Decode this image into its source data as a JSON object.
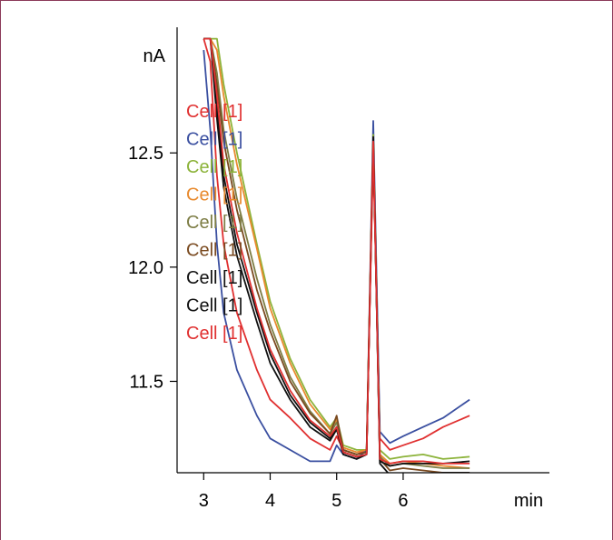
{
  "chart_data": {
    "type": "line",
    "xlabel": "min",
    "ylabel": "nA",
    "xlim": [
      2.6,
      8.2
    ],
    "ylim": [
      11.1,
      13.05
    ],
    "x_ticks": [
      3,
      4,
      5,
      6
    ],
    "x_tick_labels": [
      "3",
      "4",
      "5",
      "6"
    ],
    "y_ticks": [
      11.5,
      12.0,
      12.5
    ],
    "y_tick_labels": [
      "11.5",
      "12.0",
      "12.5"
    ],
    "grid": false,
    "legend_position": "top-left",
    "series": [
      {
        "name": "Cell [1]",
        "color": "#e03030",
        "x": [
          3.0,
          3.1,
          3.2,
          3.3,
          3.5,
          3.8,
          4.0,
          4.3,
          4.6,
          4.9,
          5.0,
          5.1,
          5.3,
          5.45,
          5.55,
          5.65,
          5.8,
          6.0,
          6.3,
          6.6,
          7.0
        ],
        "y": [
          13.0,
          12.9,
          12.4,
          12.1,
          11.8,
          11.55,
          11.42,
          11.34,
          11.25,
          11.2,
          11.26,
          11.2,
          11.18,
          11.2,
          12.5,
          11.25,
          11.2,
          11.22,
          11.25,
          11.3,
          11.35
        ]
      },
      {
        "name": "Cell [1]",
        "color": "#3a4fa0",
        "x": [
          3.0,
          3.1,
          3.2,
          3.3,
          3.5,
          3.8,
          4.0,
          4.3,
          4.6,
          4.9,
          5.0,
          5.1,
          5.3,
          5.45,
          5.55,
          5.65,
          5.8,
          6.0,
          6.3,
          6.6,
          7.0
        ],
        "y": [
          12.95,
          12.6,
          12.1,
          11.8,
          11.55,
          11.35,
          11.25,
          11.2,
          11.15,
          11.15,
          11.22,
          11.18,
          11.16,
          11.2,
          12.64,
          11.28,
          11.23,
          11.26,
          11.3,
          11.34,
          11.42
        ]
      },
      {
        "name": "Cell [1]",
        "color": "#8cb33a",
        "x": [
          3.0,
          3.1,
          3.2,
          3.3,
          3.5,
          3.8,
          4.0,
          4.3,
          4.6,
          4.9,
          5.0,
          5.1,
          5.3,
          5.45,
          5.55,
          5.65,
          5.8,
          6.0,
          6.3,
          6.6,
          7.0
        ],
        "y": [
          13.0,
          13.0,
          13.0,
          12.8,
          12.5,
          12.1,
          11.85,
          11.6,
          11.42,
          11.3,
          11.34,
          11.22,
          11.2,
          11.2,
          12.58,
          11.2,
          11.16,
          11.17,
          11.18,
          11.16,
          11.17
        ]
      },
      {
        "name": "Cell [1]",
        "color": "#e88a2e",
        "x": [
          3.0,
          3.1,
          3.2,
          3.3,
          3.5,
          3.8,
          4.0,
          4.3,
          4.6,
          4.9,
          5.0,
          5.1,
          5.3,
          5.45,
          5.55,
          5.65,
          5.8,
          6.0,
          6.3,
          6.6,
          7.0
        ],
        "y": [
          13.0,
          13.0,
          12.95,
          12.75,
          12.45,
          12.08,
          11.82,
          11.58,
          11.4,
          11.29,
          11.33,
          11.21,
          11.19,
          11.2,
          12.56,
          11.18,
          11.14,
          11.15,
          11.14,
          11.13,
          11.12
        ]
      },
      {
        "name": "Cell [1]",
        "color": "#7d7d45",
        "x": [
          3.0,
          3.1,
          3.2,
          3.3,
          3.5,
          3.8,
          4.0,
          4.3,
          4.6,
          4.9,
          5.0,
          5.1,
          5.3,
          5.45,
          5.55,
          5.65,
          5.8,
          6.0,
          6.3,
          6.6,
          7.0
        ],
        "y": [
          13.0,
          13.0,
          12.85,
          12.6,
          12.3,
          11.95,
          11.75,
          11.52,
          11.37,
          11.27,
          11.32,
          11.2,
          11.18,
          11.19,
          12.57,
          11.17,
          11.13,
          11.14,
          11.13,
          11.12,
          11.12
        ]
      },
      {
        "name": "Cell [1]",
        "color": "#7a4a20",
        "x": [
          3.0,
          3.1,
          3.2,
          3.3,
          3.5,
          3.8,
          4.0,
          4.3,
          4.6,
          4.9,
          5.0,
          5.1,
          5.3,
          5.45,
          5.55,
          5.65,
          5.8,
          6.0,
          6.3,
          6.6,
          7.0
        ],
        "y": [
          13.0,
          13.0,
          12.8,
          12.55,
          12.25,
          11.9,
          11.72,
          11.5,
          11.36,
          11.27,
          11.35,
          11.2,
          11.18,
          11.19,
          12.57,
          11.16,
          11.11,
          11.12,
          11.11,
          11.1,
          11.1
        ]
      },
      {
        "name": "Cell [1]",
        "color": "#111111",
        "x": [
          3.0,
          3.1,
          3.2,
          3.3,
          3.5,
          3.8,
          4.0,
          4.3,
          4.6,
          4.9,
          5.0,
          5.1,
          5.3,
          5.45,
          5.55,
          5.65,
          5.8,
          6.0,
          6.3,
          6.6,
          7.0
        ],
        "y": [
          13.0,
          13.0,
          12.7,
          12.4,
          12.1,
          11.8,
          11.62,
          11.44,
          11.32,
          11.25,
          11.3,
          11.19,
          11.17,
          11.18,
          12.57,
          11.15,
          11.13,
          11.14,
          11.14,
          11.14,
          11.15
        ]
      },
      {
        "name": "Cell [1]",
        "color": "#111111",
        "x": [
          3.0,
          3.1,
          3.2,
          3.3,
          3.5,
          3.8,
          4.0,
          4.3,
          4.6,
          4.9,
          5.0,
          5.1,
          5.3,
          5.45,
          5.55,
          5.65,
          5.8,
          6.0,
          6.3,
          6.6,
          7.0
        ],
        "y": [
          13.0,
          13.0,
          12.65,
          12.35,
          12.05,
          11.76,
          11.58,
          11.42,
          11.3,
          11.24,
          11.29,
          11.18,
          11.16,
          11.18,
          12.56,
          11.14,
          11.09,
          11.08,
          11.09,
          11.1,
          11.1
        ]
      },
      {
        "name": "Cell [1]",
        "color": "#e03030",
        "x": [
          3.0,
          3.1,
          3.2,
          3.3,
          3.5,
          3.8,
          4.0,
          4.3,
          4.6,
          4.9,
          5.0,
          5.1,
          5.3,
          5.45,
          5.55,
          5.65,
          5.8,
          6.0,
          6.3,
          6.6,
          7.0
        ],
        "y": [
          13.0,
          13.0,
          12.75,
          12.45,
          12.15,
          11.82,
          11.64,
          11.46,
          11.33,
          11.26,
          11.3,
          11.19,
          11.17,
          11.18,
          12.55,
          11.16,
          11.14,
          11.15,
          11.15,
          11.14,
          11.14
        ]
      }
    ]
  }
}
